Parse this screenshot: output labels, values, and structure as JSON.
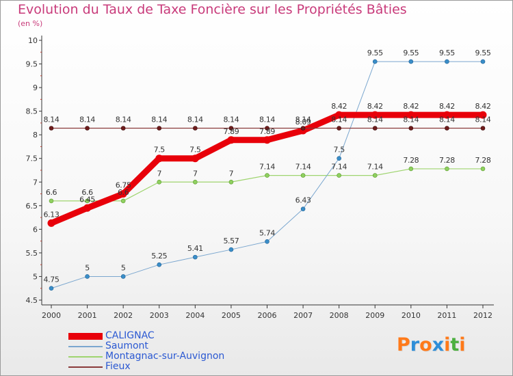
{
  "title": "Evolution du Taux de Taxe Foncière sur les Propriétés Bâties",
  "subtitle": "(en %)",
  "logo": {
    "letters": [
      "P",
      "r",
      "o",
      "x",
      "i",
      "t",
      "i"
    ],
    "colors": [
      "#ff7a1a",
      "#2e8ed8",
      "#ff7a1a",
      "#2e8ed8",
      "#ff7a1a",
      "#4cb040",
      "#ff7a1a"
    ]
  },
  "chart_data": {
    "type": "line",
    "title": "Evolution du Taux de Taxe Foncière sur les Propriétés Bâties",
    "ylabel": "(en %)",
    "xlabel": "",
    "ylim": [
      4.5,
      10
    ],
    "yticks": [
      "4.5",
      "5",
      "5.5",
      "6",
      "6.5",
      "7",
      "7.5",
      "8",
      "8.5",
      "9",
      "9.5",
      "10"
    ],
    "grid": false,
    "legend_position": "bottom-left",
    "x": [
      "2000",
      "2001",
      "2002",
      "2003",
      "2004",
      "2005",
      "2006",
      "2007",
      "2008",
      "2009",
      "2010",
      "2011",
      "2012"
    ],
    "series": [
      {
        "name": "CALIGNAC",
        "color": "#e8000a",
        "marker_color": "#e8000a",
        "values": [
          6.13,
          6.45,
          6.75,
          7.5,
          7.5,
          7.89,
          7.89,
          8.09,
          8.42,
          8.42,
          8.42,
          8.42,
          8.42
        ],
        "labels": [
          "6.13",
          "6.45",
          "6.75",
          "7.5",
          "7.5",
          "7.89",
          "7.89",
          "8.09",
          "8.42",
          "8.42",
          "8.42",
          "8.42",
          "8.42"
        ]
      },
      {
        "name": "Saumont",
        "color": "#7ba7cf",
        "marker_color": "#3a8ec8",
        "values": [
          4.75,
          5,
          5,
          5.25,
          5.41,
          5.57,
          5.74,
          6.43,
          7.5,
          9.55,
          9.55,
          9.55,
          9.55
        ],
        "labels": [
          "4.75",
          "5",
          "5",
          "5.25",
          "5.41",
          "5.57",
          "5.74",
          "6.43",
          "7.5",
          "9.55",
          "9.55",
          "9.55",
          "9.55"
        ]
      },
      {
        "name": "Montagnac-sur-Auvignon",
        "color": "#9ed46e",
        "marker_color": "#8fd060",
        "values": [
          6.6,
          6.6,
          6.6,
          7,
          7,
          7,
          7.14,
          7.14,
          7.14,
          7.14,
          7.28,
          7.28,
          7.28
        ],
        "labels": [
          "6.6",
          "6.6",
          "6.6",
          "7",
          "7",
          "7",
          "7.14",
          "7.14",
          "7.14",
          "7.14",
          "7.28",
          "7.28",
          "7.28"
        ]
      },
      {
        "name": "Fieux",
        "color": "#8a3a3a",
        "marker_color": "#6e1c1c",
        "values": [
          8.14,
          8.14,
          8.14,
          8.14,
          8.14,
          8.14,
          8.14,
          8.14,
          8.14,
          8.14,
          8.14,
          8.14,
          8.14
        ],
        "labels": [
          "8.14",
          "8.14",
          "8.14",
          "8.14",
          "8.14",
          "8.14",
          "8.14",
          "8.14",
          "8.14",
          "8.14",
          "8.14",
          "8.14",
          "8.14"
        ]
      }
    ]
  }
}
